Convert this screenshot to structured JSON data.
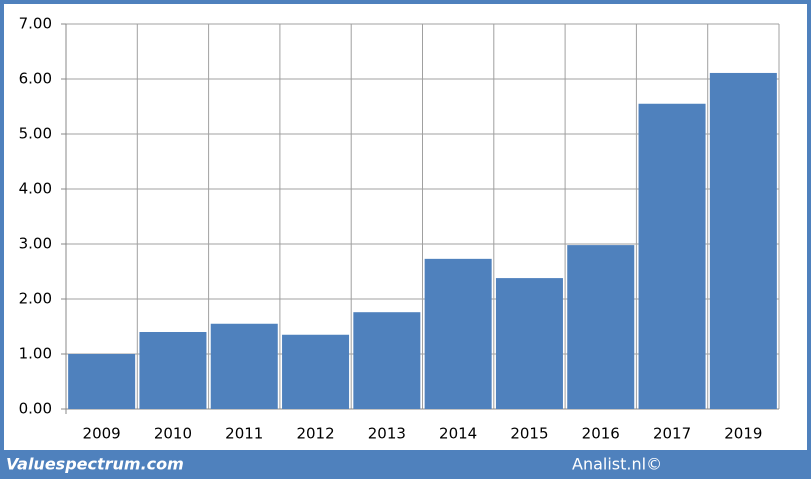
{
  "chart_data": {
    "type": "bar",
    "categories": [
      "2009",
      "2010",
      "2011",
      "2012",
      "2013",
      "2014",
      "2015",
      "2016",
      "2017",
      "2019"
    ],
    "values": [
      1.0,
      1.4,
      1.55,
      1.35,
      1.76,
      2.73,
      2.38,
      2.98,
      5.55,
      6.11
    ],
    "color": "#4f81bd",
    "ylim": [
      0,
      7
    ],
    "yticks": [
      {
        "value": 0,
        "label": "0.00"
      },
      {
        "value": 1,
        "label": "1.00"
      },
      {
        "value": 2,
        "label": "2.00"
      },
      {
        "value": 3,
        "label": "3.00"
      },
      {
        "value": 4,
        "label": "4.00"
      },
      {
        "value": 5,
        "label": "5.00"
      },
      {
        "value": 6,
        "label": "6.00"
      },
      {
        "value": 7,
        "label": "7.00"
      }
    ],
    "grid": true,
    "credits": [
      "Valuespectrum.com",
      "Analist.nl©"
    ]
  }
}
